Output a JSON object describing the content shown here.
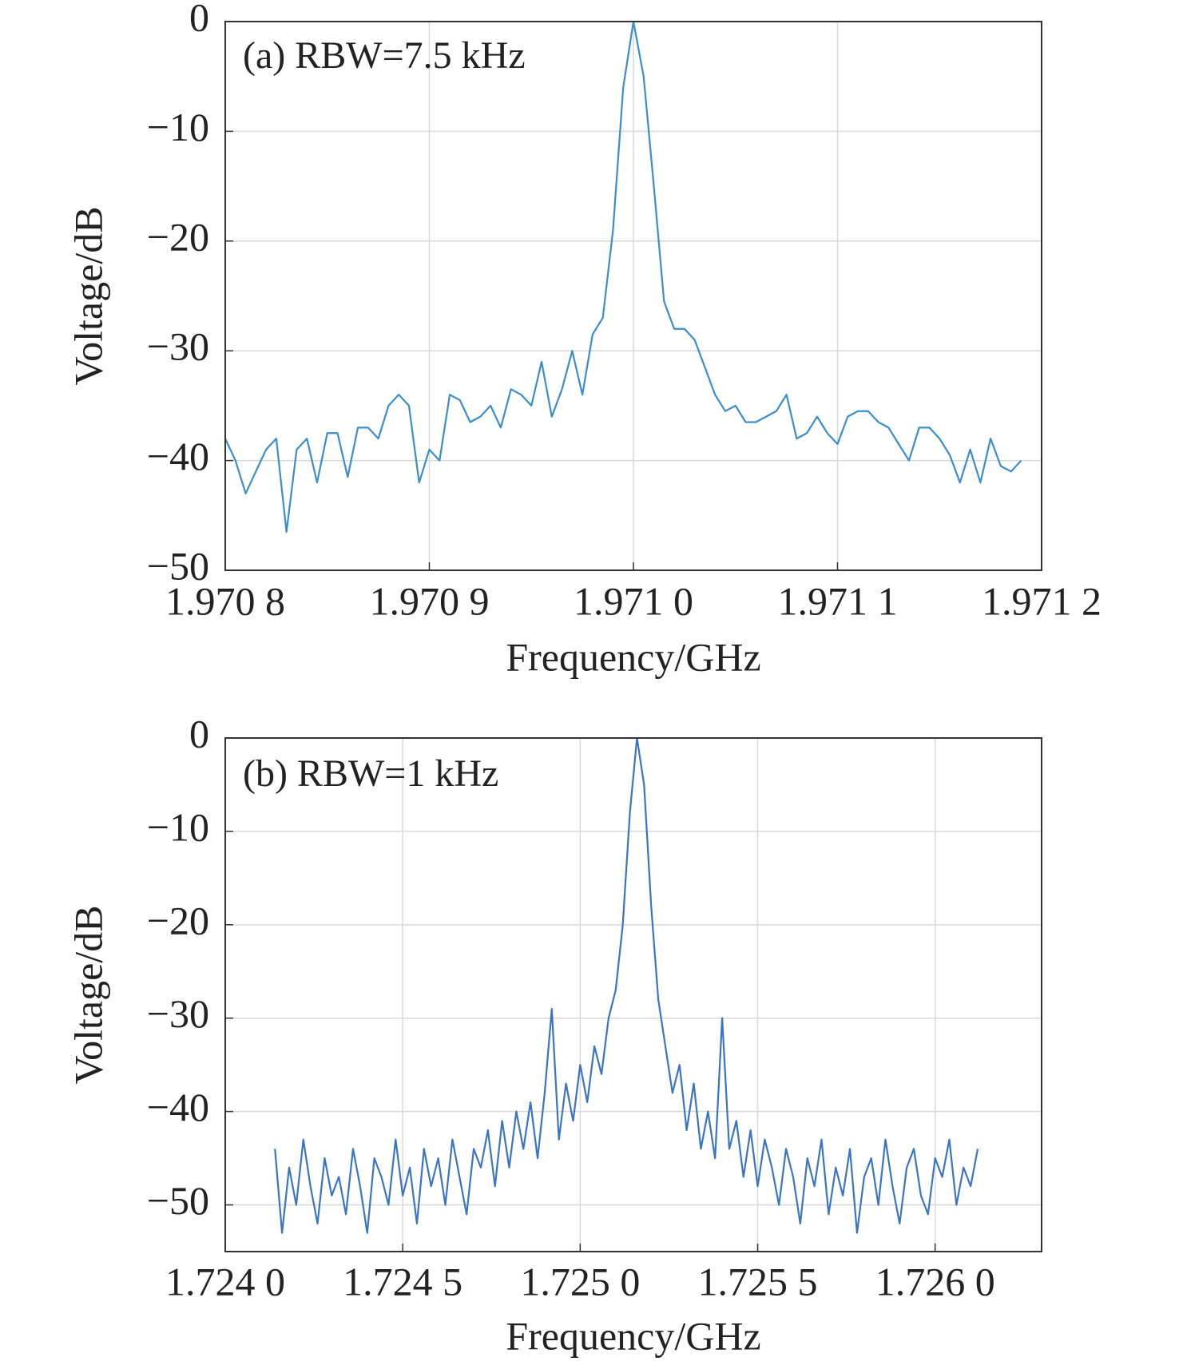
{
  "chart_data": [
    {
      "type": "line",
      "annotation": "(a) RBW=7.5 kHz",
      "x_label": "Frequency/GHz",
      "y_label": "Voltage/dB",
      "color": "#3c8dcb",
      "grid": true,
      "xlim": [
        1.9708,
        1.9712
      ],
      "xticks": [
        {
          "value": 1.9708,
          "label": "1.970 8"
        },
        {
          "value": 1.9709,
          "label": "1.970 9"
        },
        {
          "value": 1.971,
          "label": "1.971 0"
        },
        {
          "value": 1.9711,
          "label": "1.971 1"
        },
        {
          "value": 1.9712,
          "label": "1.971 2"
        }
      ],
      "ylim": [
        -50,
        0
      ],
      "yticks": [
        {
          "value": -50,
          "label": "−50"
        },
        {
          "value": -40,
          "label": "−40"
        },
        {
          "value": -30,
          "label": "−30"
        },
        {
          "value": -20,
          "label": "−20"
        },
        {
          "value": -10,
          "label": "−10"
        },
        0
      ],
      "x": [
        1.9708,
        1.970805,
        1.97081,
        1.970815,
        1.97082,
        1.970825,
        1.97083,
        1.970835,
        1.97084,
        1.970845,
        1.97085,
        1.970855,
        1.97086,
        1.970865,
        1.97087,
        1.970875,
        1.97088,
        1.970885,
        1.97089,
        1.970895,
        1.9709,
        1.970905,
        1.97091,
        1.970915,
        1.97092,
        1.970925,
        1.97093,
        1.970935,
        1.97094,
        1.970945,
        1.97095,
        1.970955,
        1.97096,
        1.970965,
        1.97097,
        1.970975,
        1.97098,
        1.970985,
        1.97099,
        1.970995,
        1.971,
        1.971005,
        1.97101,
        1.971015,
        1.97102,
        1.971025,
        1.97103,
        1.971035,
        1.97104,
        1.971045,
        1.97105,
        1.971055,
        1.97106,
        1.971065,
        1.97107,
        1.971075,
        1.97108,
        1.971085,
        1.97109,
        1.971095,
        1.9711,
        1.971105,
        1.97111,
        1.971115,
        1.97112,
        1.971125,
        1.97113,
        1.971135,
        1.97114,
        1.971145,
        1.97115,
        1.971155,
        1.97116,
        1.971165,
        1.97117,
        1.971175,
        1.97118,
        1.971185,
        1.97119
      ],
      "values": [
        -38,
        -40,
        -43,
        -41,
        -39,
        -38,
        -46.5,
        -39,
        -38,
        -42,
        -37.5,
        -37.5,
        -41.5,
        -37,
        -37,
        -38,
        -35,
        -34,
        -35,
        -42,
        -39,
        -40,
        -34,
        -34.5,
        -36.5,
        -36,
        -35,
        -37,
        -33.5,
        -34,
        -35,
        -31,
        -36,
        -33.5,
        -30,
        -34,
        -28.5,
        -27,
        -19,
        -6,
        0,
        -5,
        -15,
        -25.5,
        -28,
        -28,
        -29,
        -31.5,
        -34,
        -35.5,
        -35,
        -36.5,
        -36.5,
        -36,
        -35.5,
        -34,
        -38,
        -37.5,
        -36,
        -37.5,
        -38.5,
        -36,
        -35.5,
        -35.5,
        -36.5,
        -37,
        -38.5,
        -40,
        -37,
        -37,
        -38,
        -39.5,
        -42,
        -39,
        -42,
        -38,
        -40.5,
        -41,
        -40
      ]
    },
    {
      "type": "line",
      "annotation": "(b) RBW=1 kHz",
      "x_label": "Frequency/GHz",
      "y_label": "Voltage/dB",
      "color": "#3a74c4",
      "grid": true,
      "xlim": [
        1.724,
        1.7263
      ],
      "xticks": [
        {
          "value": 1.724,
          "label": "1.724 0"
        },
        {
          "value": 1.7245,
          "label": "1.724 5"
        },
        {
          "value": 1.725,
          "label": "1.725 0"
        },
        {
          "value": 1.7255,
          "label": "1.725 5"
        },
        {
          "value": 1.726,
          "label": "1.726 0"
        }
      ],
      "ylim": [
        -55,
        0
      ],
      "yticks": [
        {
          "value": -50,
          "label": "−50"
        },
        {
          "value": -40,
          "label": "−40"
        },
        {
          "value": -30,
          "label": "−30"
        },
        {
          "value": -20,
          "label": "−20"
        },
        {
          "value": -10,
          "label": "−10"
        },
        0
      ],
      "x": [
        1.72414,
        1.72416,
        1.72418,
        1.7242,
        1.72422,
        1.72424,
        1.72426,
        1.72428,
        1.7243,
        1.72432,
        1.72434,
        1.72436,
        1.72438,
        1.7244,
        1.72442,
        1.72444,
        1.72446,
        1.72448,
        1.7245,
        1.72452,
        1.72454,
        1.72456,
        1.72458,
        1.7246,
        1.72462,
        1.72464,
        1.72466,
        1.72468,
        1.7247,
        1.72472,
        1.72474,
        1.72476,
        1.72478,
        1.7248,
        1.72482,
        1.72484,
        1.72486,
        1.72488,
        1.7249,
        1.72492,
        1.72494,
        1.72496,
        1.72498,
        1.725,
        1.72502,
        1.72504,
        1.72506,
        1.72508,
        1.7251,
        1.72512,
        1.72514,
        1.72516,
        1.72518,
        1.7252,
        1.72522,
        1.72524,
        1.72526,
        1.72528,
        1.7253,
        1.72532,
        1.72534,
        1.72536,
        1.72538,
        1.7254,
        1.72542,
        1.72544,
        1.72546,
        1.72548,
        1.7255,
        1.72552,
        1.72554,
        1.72556,
        1.72558,
        1.7256,
        1.72562,
        1.72564,
        1.72566,
        1.72568,
        1.7257,
        1.72572,
        1.72574,
        1.72576,
        1.72578,
        1.7258,
        1.72582,
        1.72584,
        1.72586,
        1.72588,
        1.7259,
        1.72592,
        1.72594,
        1.72596,
        1.72598,
        1.726,
        1.72602,
        1.72604,
        1.72606,
        1.72608,
        1.7261,
        1.72612
      ],
      "values": [
        -44,
        -53,
        -46,
        -50,
        -43,
        -48,
        -52,
        -45,
        -49,
        -47,
        -51,
        -44,
        -48,
        -53,
        -45,
        -47,
        -50,
        -43,
        -49,
        -46,
        -52,
        -44,
        -48,
        -45,
        -50,
        -43,
        -47,
        -51,
        -44,
        -46,
        -42,
        -48,
        -41,
        -46,
        -40,
        -44,
        -39,
        -45,
        -38,
        -29,
        -43,
        -37,
        -41,
        -35,
        -39,
        -33,
        -36,
        -30,
        -27,
        -20,
        -8,
        0,
        -5,
        -18,
        -28,
        -33,
        -38,
        -35,
        -42,
        -37,
        -44,
        -40,
        -45,
        -30,
        -44,
        -41,
        -47,
        -42,
        -48,
        -43,
        -46,
        -50,
        -44,
        -47,
        -52,
        -45,
        -48,
        -43,
        -51,
        -46,
        -49,
        -44,
        -53,
        -47,
        -45,
        -50,
        -43,
        -48,
        -52,
        -46,
        -44,
        -49,
        -51,
        -45,
        -47,
        -43,
        -50,
        -46,
        -48,
        -44
      ]
    }
  ]
}
